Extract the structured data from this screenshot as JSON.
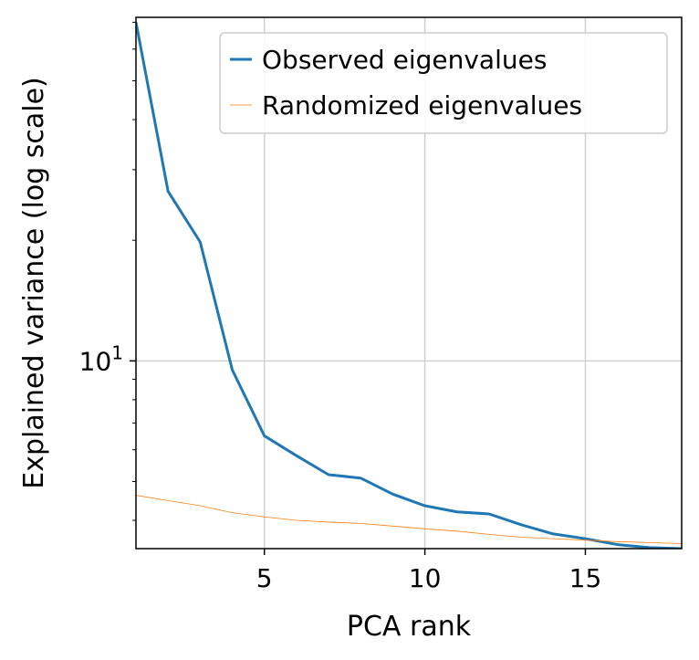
{
  "chart_data": {
    "type": "line",
    "title": "",
    "xlabel": "PCA rank",
    "ylabel": "Explained variance (log scale)",
    "yscale": "log",
    "xlim": [
      1,
      18
    ],
    "ylim": [
      3.4,
      72
    ],
    "grid": true,
    "legend_position": "top-right",
    "x_ticks": [
      {
        "value": 5,
        "label": "5"
      },
      {
        "value": 10,
        "label": "10"
      },
      {
        "value": 15,
        "label": "15"
      }
    ],
    "y_ticks": [
      {
        "value": 10,
        "label_base": "10",
        "label_exp": "1"
      }
    ],
    "series": [
      {
        "name": "Observed eigenvalues",
        "color": "#1f77b4",
        "x": [
          1,
          2,
          3,
          4,
          5,
          6,
          7,
          8,
          9,
          10,
          11,
          12,
          13,
          14,
          15,
          16,
          17,
          18
        ],
        "y": [
          70,
          26.5,
          19.8,
          9.5,
          6.5,
          5.8,
          5.2,
          5.1,
          4.65,
          4.35,
          4.2,
          4.15,
          3.9,
          3.7,
          3.6,
          3.48,
          3.42,
          3.4
        ]
      },
      {
        "name": "Randomized eigenvalues",
        "color": "#ff7f0e",
        "x": [
          1,
          2,
          3,
          4,
          5,
          6,
          7,
          8,
          9,
          10,
          11,
          12,
          13,
          14,
          15,
          16,
          17,
          18
        ],
        "y": [
          4.62,
          4.48,
          4.35,
          4.18,
          4.08,
          4.0,
          3.96,
          3.93,
          3.87,
          3.81,
          3.76,
          3.69,
          3.63,
          3.6,
          3.57,
          3.54,
          3.52,
          3.5
        ]
      }
    ]
  }
}
